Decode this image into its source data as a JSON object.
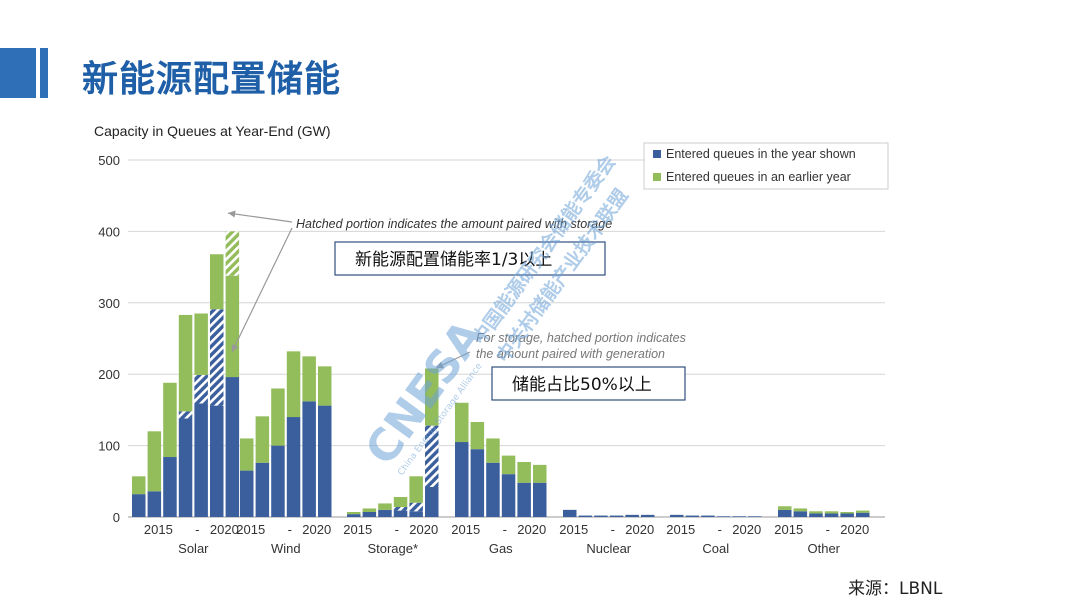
{
  "slide": {
    "title": "新能源配置储能",
    "source": "来源：LBNL"
  },
  "colors": {
    "accent": "#2f6fb8",
    "current": "#3a5f9c",
    "earlier": "#93bc5b",
    "title": "#1f5fa8"
  },
  "chart_data": {
    "type": "bar",
    "title": "Capacity in Queues at Year-End (GW)",
    "ylim": [
      0,
      500
    ],
    "yticks": [
      0,
      100,
      200,
      300,
      400,
      500
    ],
    "legend": {
      "position": "top-right",
      "entries": [
        "Entered queues in the year shown",
        "Entered queues in an earlier year"
      ]
    },
    "tick_labels": [
      "2015",
      "-",
      "2020"
    ],
    "series_names": [
      "Entered queues in the year shown",
      "Entered queues in an earlier year"
    ],
    "groups": [
      {
        "name": "Solar",
        "years": [
          2014,
          2015,
          2016,
          2017,
          2018,
          2019,
          2020
        ],
        "current": [
          32,
          36,
          84,
          148,
          199,
          291,
          196
        ],
        "earlier": [
          25,
          84,
          104,
          135,
          86,
          77,
          204
        ],
        "hatched_bottom": [
          0,
          0,
          0,
          10,
          40,
          135,
          0
        ],
        "hatched_top": [
          0,
          0,
          0,
          0,
          0,
          0,
          62
        ]
      },
      {
        "name": "Wind",
        "years": [
          2015,
          2016,
          2017,
          2018,
          2019,
          2020
        ],
        "current": [
          65,
          76,
          100,
          140,
          162,
          156
        ],
        "earlier": [
          45,
          65,
          80,
          92,
          63,
          55
        ],
        "hatched_bottom": [
          0,
          0,
          0,
          0,
          0,
          0
        ],
        "hatched_top": [
          0,
          0,
          0,
          0,
          0,
          0
        ]
      },
      {
        "name": "Storage*",
        "years": [
          2015,
          2016,
          2017,
          2018,
          2019,
          2020
        ],
        "current": [
          4,
          7,
          10,
          14,
          20,
          128
        ],
        "earlier": [
          3,
          5,
          9,
          14,
          37,
          80
        ],
        "hatched_bottom": [
          0,
          0,
          0,
          5,
          12,
          86
        ],
        "hatched_top": [
          0,
          0,
          0,
          0,
          0,
          0
        ]
      },
      {
        "name": "Gas",
        "years": [
          2015,
          2016,
          2017,
          2018,
          2019,
          2020
        ],
        "current": [
          105,
          95,
          76,
          60,
          48,
          48
        ],
        "earlier": [
          55,
          38,
          34,
          26,
          29,
          25
        ],
        "hatched_bottom": [
          0,
          0,
          0,
          0,
          0,
          0
        ],
        "hatched_top": [
          0,
          0,
          0,
          0,
          0,
          0
        ]
      },
      {
        "name": "Nuclear",
        "years": [
          2015,
          2016,
          2017,
          2018,
          2019,
          2020
        ],
        "current": [
          10,
          2,
          2,
          2,
          3,
          3
        ],
        "earlier": [
          0,
          0,
          0,
          0,
          0,
          0
        ],
        "hatched_bottom": [
          0,
          0,
          0,
          0,
          0,
          0
        ],
        "hatched_top": [
          0,
          0,
          0,
          0,
          0,
          0
        ]
      },
      {
        "name": "Coal",
        "years": [
          2015,
          2016,
          2017,
          2018,
          2019,
          2020
        ],
        "current": [
          3,
          2,
          2,
          1,
          1,
          1
        ],
        "earlier": [
          0,
          0,
          0,
          0,
          0,
          0
        ],
        "hatched_bottom": [
          0,
          0,
          0,
          0,
          0,
          0
        ],
        "hatched_top": [
          0,
          0,
          0,
          0,
          0,
          0
        ]
      },
      {
        "name": "Other",
        "years": [
          2015,
          2016,
          2017,
          2018,
          2019,
          2020
        ],
        "current": [
          10,
          8,
          5,
          5,
          5,
          6
        ],
        "earlier": [
          5,
          4,
          3,
          3,
          2,
          3
        ],
        "hatched_bottom": [
          0,
          0,
          0,
          0,
          0,
          0
        ],
        "hatched_top": [
          0,
          0,
          0,
          0,
          0,
          0
        ]
      }
    ],
    "annotations": {
      "hatch_note": "Hatched portion indicates the amount paired with storage",
      "storage_note_line1": "For storage, hatched portion indicates",
      "storage_note_line2": "the amount paired with generation",
      "box1": "新能源配置储能率1/3以上",
      "box2": "储能占比50%以上"
    }
  },
  "watermark": {
    "logo": "CNESA",
    "subtitle": "China Energy Storage Alliance",
    "line1": "中国能源研究会储能专委会",
    "line2": "中关村储能产业技术联盟"
  }
}
